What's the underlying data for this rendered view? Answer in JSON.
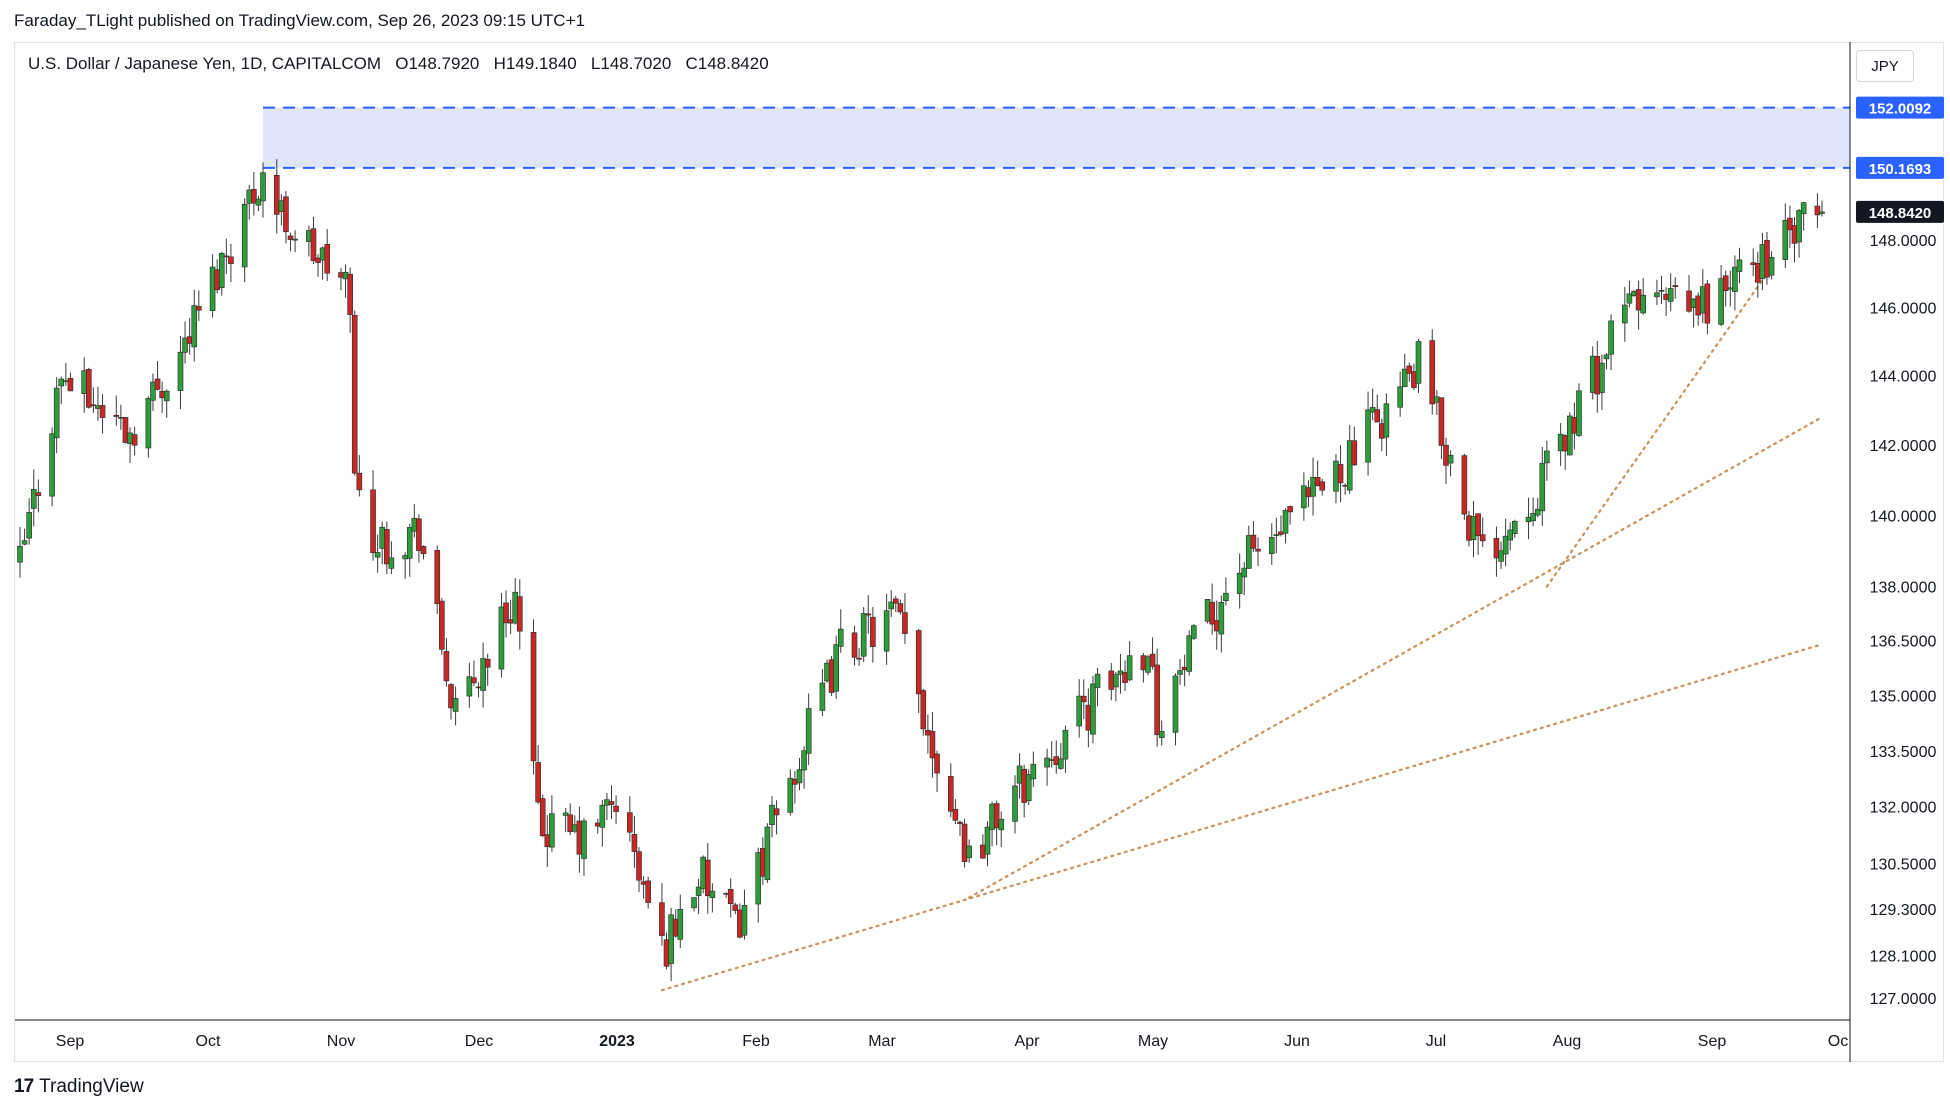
{
  "header": {
    "text": "Faraday_TLight published on TradingView.com, Sep 26, 2023 09:15 UTC+1"
  },
  "legend": {
    "symbol": "U.S. Dollar / Japanese Yen, 1D, CAPITALCOM",
    "open": "O148.7920",
    "high": "H149.1840",
    "low": "L148.7020",
    "close": "C148.8420"
  },
  "currency_button": "JPY",
  "footer": {
    "brand": "TradingView",
    "logo_glyph": "17"
  },
  "colors": {
    "up": "#26a69a",
    "up_fill": "#2e9b3c",
    "down": "#c62828",
    "zone": "#dfe6fb",
    "zone_line": "#2962ff",
    "trend": "#c8925a",
    "price_tag": "#131722"
  },
  "chart_data": {
    "type": "candlestick",
    "symbol": "USDJPY",
    "timeframe": "1D",
    "y_axis": {
      "ticks": [
        127.0,
        128.1,
        129.3,
        130.5,
        132.0,
        133.5,
        135.0,
        136.5,
        138.0,
        140.0,
        142.0,
        144.0,
        146.0,
        148.0
      ],
      "tick_labels": [
        "127.0000",
        "128.1000",
        "129.3000",
        "130.5000",
        "132.0000",
        "133.5000",
        "135.0000",
        "136.5000",
        "138.0000",
        "140.0000",
        "142.0000",
        "144.0000",
        "146.0000",
        "148.0000"
      ],
      "scale": "log"
    },
    "x_axis": {
      "labels": [
        "Sep",
        "Oct",
        "Nov",
        "Dec",
        "2023",
        "Feb",
        "Mar",
        "Apr",
        "May",
        "Jun",
        "Jul",
        "Aug",
        "Sep",
        "Oc"
      ],
      "start_date": "2022-08-29",
      "end_date": "2023-09-26"
    },
    "price_labels": [
      {
        "value": "152.0092",
        "style": "zone"
      },
      {
        "value": "150.1693",
        "style": "zone"
      },
      {
        "value": "148.8420",
        "style": "last"
      }
    ],
    "zone": {
      "top": 152.0092,
      "bottom": 150.1693,
      "from_date": "2022-10-21"
    },
    "trend_lines": [
      {
        "from": {
          "date": "2023-01-16",
          "price": 127.2
        },
        "to": {
          "date": "2023-09-26",
          "price": 136.4
        }
      },
      {
        "from": {
          "date": "2023-03-24",
          "price": 129.6
        },
        "to": {
          "date": "2023-09-26",
          "price": 142.8
        }
      },
      {
        "from": {
          "date": "2023-07-28",
          "price": 138.0
        },
        "to": {
          "date": "2023-09-14",
          "price": 147.0
        }
      }
    ],
    "anchors": [
      {
        "date": "2022-08-29",
        "close": 138.6
      },
      {
        "date": "2022-09-07",
        "close": 144.0
      },
      {
        "date": "2022-09-22",
        "close": 142.4
      },
      {
        "date": "2022-10-03",
        "close": 144.7
      },
      {
        "date": "2022-10-21",
        "close": 150.1
      },
      {
        "date": "2022-10-24",
        "close": 148.9
      },
      {
        "date": "2022-11-09",
        "close": 146.4
      },
      {
        "date": "2022-11-10",
        "close": 140.9
      },
      {
        "date": "2022-11-15",
        "close": 139.2
      },
      {
        "date": "2022-11-24",
        "close": 139.6
      },
      {
        "date": "2022-12-02",
        "close": 134.3
      },
      {
        "date": "2022-12-15",
        "close": 137.8
      },
      {
        "date": "2022-12-20",
        "close": 131.5
      },
      {
        "date": "2022-12-30",
        "close": 131.1
      },
      {
        "date": "2023-01-06",
        "close": 132.2
      },
      {
        "date": "2023-01-16",
        "close": 128.2
      },
      {
        "date": "2023-01-24",
        "close": 130.2
      },
      {
        "date": "2023-02-01",
        "close": 128.8
      },
      {
        "date": "2023-02-09",
        "close": 131.4
      },
      {
        "date": "2023-02-24",
        "close": 136.3
      },
      {
        "date": "2023-03-08",
        "close": 137.2
      },
      {
        "date": "2023-03-15",
        "close": 134.1
      },
      {
        "date": "2023-03-24",
        "close": 130.7
      },
      {
        "date": "2023-04-03",
        "close": 132.4
      },
      {
        "date": "2023-04-19",
        "close": 134.7
      },
      {
        "date": "2023-05-02",
        "close": 136.5
      },
      {
        "date": "2023-05-04",
        "close": 134.4
      },
      {
        "date": "2023-05-22",
        "close": 138.6
      },
      {
        "date": "2023-06-01",
        "close": 139.6
      },
      {
        "date": "2023-06-16",
        "close": 141.8
      },
      {
        "date": "2023-06-30",
        "close": 144.3
      },
      {
        "date": "2023-07-14",
        "close": 138.8
      },
      {
        "date": "2023-07-28",
        "close": 141.2
      },
      {
        "date": "2023-08-16",
        "close": 146.3
      },
      {
        "date": "2023-08-29",
        "close": 145.9
      },
      {
        "date": "2023-09-08",
        "close": 146.9
      },
      {
        "date": "2023-09-26",
        "close": 148.842
      }
    ]
  }
}
